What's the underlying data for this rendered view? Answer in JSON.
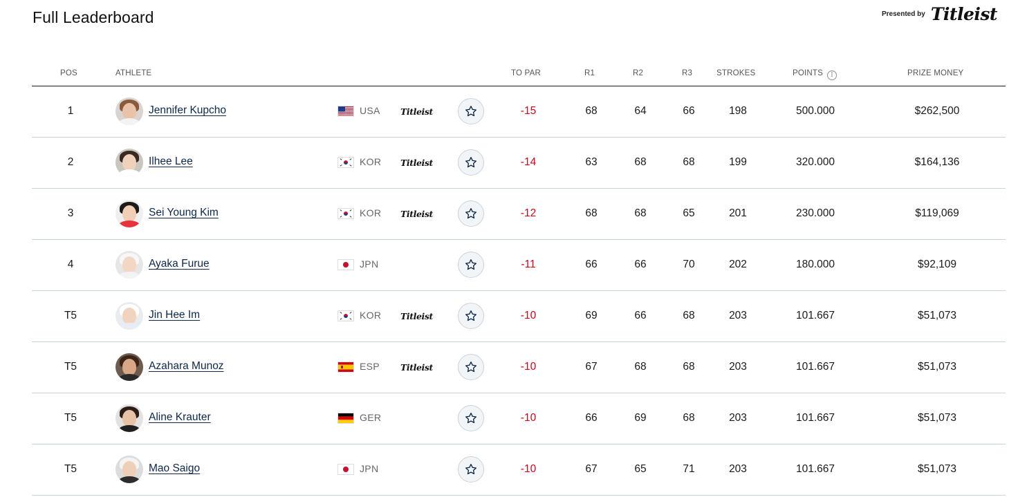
{
  "page_title": "Full Leaderboard",
  "sponsor": {
    "presented_by": "Presented by",
    "brand": "Titleist"
  },
  "columns": {
    "pos": "POS",
    "athlete": "ATHLETE",
    "to_par": "TO PAR",
    "r1": "R1",
    "r2": "R2",
    "r3": "R3",
    "strokes": "STROKES",
    "points": "POINTS",
    "prize_money": "PRIZE MONEY"
  },
  "points_info_icon": "info-icon",
  "favorite_icon": "star-outline-icon",
  "colors": {
    "to_par": "#d0021b",
    "name_link": "#0d2747",
    "row_divider": "#c8d3dc"
  },
  "rows": [
    {
      "pos": "1",
      "name": "Jennifer Kupcho",
      "country": "USA",
      "flag": "usa-flag",
      "sponsor": "Titleist",
      "to_par": "-15",
      "r1": "68",
      "r2": "64",
      "r3": "66",
      "strokes": "198",
      "points": "500.000",
      "prize": "$262,500"
    },
    {
      "pos": "2",
      "name": "Ilhee Lee",
      "country": "KOR",
      "flag": "korea-flag",
      "sponsor": "Titleist",
      "to_par": "-14",
      "r1": "63",
      "r2": "68",
      "r3": "68",
      "strokes": "199",
      "points": "320.000",
      "prize": "$164,136"
    },
    {
      "pos": "3",
      "name": "Sei Young Kim",
      "country": "KOR",
      "flag": "korea-flag",
      "sponsor": "Titleist",
      "to_par": "-12",
      "r1": "68",
      "r2": "68",
      "r3": "65",
      "strokes": "201",
      "points": "230.000",
      "prize": "$119,069"
    },
    {
      "pos": "4",
      "name": "Ayaka Furue",
      "country": "JPN",
      "flag": "japan-flag",
      "sponsor": "",
      "to_par": "-11",
      "r1": "66",
      "r2": "66",
      "r3": "70",
      "strokes": "202",
      "points": "180.000",
      "prize": "$92,109"
    },
    {
      "pos": "T5",
      "name": "Jin Hee Im",
      "country": "KOR",
      "flag": "korea-flag",
      "sponsor": "Titleist",
      "to_par": "-10",
      "r1": "69",
      "r2": "66",
      "r3": "68",
      "strokes": "203",
      "points": "101.667",
      "prize": "$51,073"
    },
    {
      "pos": "T5",
      "name": "Azahara Munoz",
      "country": "ESP",
      "flag": "spain-flag",
      "sponsor": "Titleist",
      "to_par": "-10",
      "r1": "67",
      "r2": "68",
      "r3": "68",
      "strokes": "203",
      "points": "101.667",
      "prize": "$51,073"
    },
    {
      "pos": "T5",
      "name": "Aline Krauter",
      "country": "GER",
      "flag": "germany-flag",
      "sponsor": "",
      "to_par": "-10",
      "r1": "66",
      "r2": "69",
      "r3": "68",
      "strokes": "203",
      "points": "101.667",
      "prize": "$51,073"
    },
    {
      "pos": "T5",
      "name": "Mao Saigo",
      "country": "JPN",
      "flag": "japan-flag",
      "sponsor": "",
      "to_par": "-10",
      "r1": "67",
      "r2": "65",
      "r3": "71",
      "strokes": "203",
      "points": "101.667",
      "prize": "$51,073"
    }
  ]
}
